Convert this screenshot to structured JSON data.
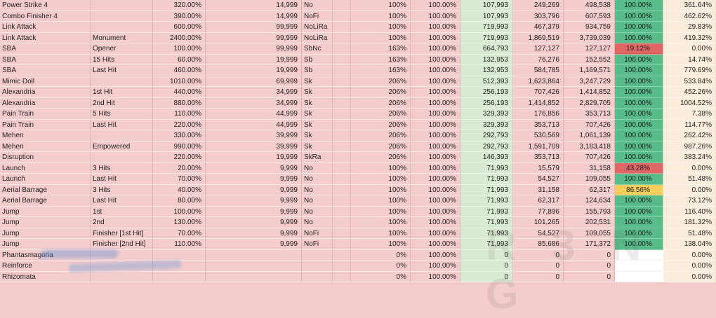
{
  "app": {
    "view": "spreadsheet-grid",
    "gridlines": "on",
    "header_row_visible": false
  },
  "colors": {
    "row_fill": "#f4cccc",
    "base_damage_column_fill": "#d9ead3",
    "cap_ratio_green": "#57bb8a",
    "cap_ratio_red": "#e06666",
    "cap_ratio_yellow": "#f5ce5e",
    "share_column_fill": "#fcecdb"
  },
  "watermark": {
    "text": "R 3 N G"
  },
  "rows": [
    {
      "skill": "Power Strike 4",
      "variant": "",
      "motion_pct": "320.00%",
      "cap": "14,999",
      "tags": "No",
      "mult": "100%",
      "pct": "100.00%",
      "base": "107,993",
      "dmg_a": "249,269",
      "dmg_b": "498,538",
      "cap_ratio": "100.00%",
      "cap_ratio_status": "green",
      "share": "361.64%"
    },
    {
      "skill": "Combo Finisher 4",
      "variant": "",
      "motion_pct": "390.00%",
      "cap": "14,999",
      "tags": "NoFi",
      "mult": "100%",
      "pct": "100.00%",
      "base": "107,993",
      "dmg_a": "303,796",
      "dmg_b": "607,593",
      "cap_ratio": "100.00%",
      "cap_ratio_status": "green",
      "share": "462.62%"
    },
    {
      "skill": "Link Attack",
      "variant": "",
      "motion_pct": "600.00%",
      "cap": "99,999",
      "tags": "NoLiRa",
      "mult": "100%",
      "pct": "100.00%",
      "base": "719,993",
      "dmg_a": "467,379",
      "dmg_b": "934,759",
      "cap_ratio": "100.00%",
      "cap_ratio_status": "green",
      "share": "29.83%"
    },
    {
      "skill": "Link Attack",
      "variant": "Monument",
      "motion_pct": "2400.00%",
      "cap": "99,999",
      "tags": "NoLiRa",
      "mult": "100%",
      "pct": "100.00%",
      "base": "719,993",
      "dmg_a": "1,869,519",
      "dmg_b": "3,739,039",
      "cap_ratio": "100.00%",
      "cap_ratio_status": "green",
      "share": "419.32%"
    },
    {
      "skill": "SBA",
      "variant": "Opener",
      "motion_pct": "100.00%",
      "cap": "99,999",
      "tags": "SbNc",
      "mult": "163%",
      "pct": "100.00%",
      "base": "664,793",
      "dmg_a": "127,127",
      "dmg_b": "127,127",
      "cap_ratio": "19.12%",
      "cap_ratio_status": "red",
      "share": "0.00%"
    },
    {
      "skill": "SBA",
      "variant": "15 Hits",
      "motion_pct": "60.00%",
      "cap": "19,999",
      "tags": "Sb",
      "mult": "163%",
      "pct": "100.00%",
      "base": "132,953",
      "dmg_a": "76,276",
      "dmg_b": "152,552",
      "cap_ratio": "100.00%",
      "cap_ratio_status": "green",
      "share": "14.74%"
    },
    {
      "skill": "SBA",
      "variant": "Last Hit",
      "motion_pct": "460.00%",
      "cap": "19,999",
      "tags": "Sb",
      "mult": "163%",
      "pct": "100.00%",
      "base": "132,953",
      "dmg_a": "584,785",
      "dmg_b": "1,169,571",
      "cap_ratio": "100.00%",
      "cap_ratio_status": "green",
      "share": "779.69%"
    },
    {
      "skill": "Mimic Doll",
      "variant": "",
      "motion_pct": "1010.00%",
      "cap": "69,999",
      "tags": "Sk",
      "mult": "206%",
      "pct": "100.00%",
      "base": "512,393",
      "dmg_a": "1,623,864",
      "dmg_b": "3,247,729",
      "cap_ratio": "100.00%",
      "cap_ratio_status": "green",
      "share": "533.84%"
    },
    {
      "skill": "Alexandria",
      "variant": "1st Hit",
      "motion_pct": "440.00%",
      "cap": "34,999",
      "tags": "Sk",
      "mult": "206%",
      "pct": "100.00%",
      "base": "256,193",
      "dmg_a": "707,426",
      "dmg_b": "1,414,852",
      "cap_ratio": "100.00%",
      "cap_ratio_status": "green",
      "share": "452.26%"
    },
    {
      "skill": "Alexandria",
      "variant": "2nd Hit",
      "motion_pct": "880.00%",
      "cap": "34,999",
      "tags": "Sk",
      "mult": "206%",
      "pct": "100.00%",
      "base": "256,193",
      "dmg_a": "1,414,852",
      "dmg_b": "2,829,705",
      "cap_ratio": "100.00%",
      "cap_ratio_status": "green",
      "share": "1004.52%"
    },
    {
      "skill": "Pain Train",
      "variant": "5 Hits",
      "motion_pct": "110.00%",
      "cap": "44,999",
      "tags": "Sk",
      "mult": "206%",
      "pct": "100.00%",
      "base": "329,393",
      "dmg_a": "176,856",
      "dmg_b": "353,713",
      "cap_ratio": "100.00%",
      "cap_ratio_status": "green",
      "share": "7.38%"
    },
    {
      "skill": "Pain Train",
      "variant": "Last Hit",
      "motion_pct": "220.00%",
      "cap": "44,999",
      "tags": "Sk",
      "mult": "206%",
      "pct": "100.00%",
      "base": "329,393",
      "dmg_a": "353,713",
      "dmg_b": "707,426",
      "cap_ratio": "100.00%",
      "cap_ratio_status": "green",
      "share": "114.77%"
    },
    {
      "skill": "Mehen",
      "variant": "",
      "motion_pct": "330.00%",
      "cap": "39,999",
      "tags": "Sk",
      "mult": "206%",
      "pct": "100.00%",
      "base": "292,793",
      "dmg_a": "530,569",
      "dmg_b": "1,061,139",
      "cap_ratio": "100.00%",
      "cap_ratio_status": "green",
      "share": "262.42%"
    },
    {
      "skill": "Mehen",
      "variant": "Empowered",
      "motion_pct": "990.00%",
      "cap": "39,999",
      "tags": "Sk",
      "mult": "206%",
      "pct": "100.00%",
      "base": "292,793",
      "dmg_a": "1,591,709",
      "dmg_b": "3,183,418",
      "cap_ratio": "100.00%",
      "cap_ratio_status": "green",
      "share": "987.26%"
    },
    {
      "skill": "Disruption",
      "variant": "",
      "motion_pct": "220.00%",
      "cap": "19,999",
      "tags": "SkRa",
      "mult": "206%",
      "pct": "100.00%",
      "base": "146,393",
      "dmg_a": "353,713",
      "dmg_b": "707,426",
      "cap_ratio": "100.00%",
      "cap_ratio_status": "green",
      "share": "383.24%"
    },
    {
      "skill": "Launch",
      "variant": "3 Hits",
      "motion_pct": "20.00%",
      "cap": "9,999",
      "tags": "No",
      "mult": "100%",
      "pct": "100.00%",
      "base": "71,993",
      "dmg_a": "15,579",
      "dmg_b": "31,158",
      "cap_ratio": "43.28%",
      "cap_ratio_status": "red",
      "share": "0.00%"
    },
    {
      "skill": "Launch",
      "variant": "Last Hit",
      "motion_pct": "70.00%",
      "cap": "9,999",
      "tags": "No",
      "mult": "100%",
      "pct": "100.00%",
      "base": "71,993",
      "dmg_a": "54,527",
      "dmg_b": "109,055",
      "cap_ratio": "100.00%",
      "cap_ratio_status": "green",
      "share": "51.48%"
    },
    {
      "skill": "Aerial Barrage",
      "variant": "3 Hits",
      "motion_pct": "40.00%",
      "cap": "9,999",
      "tags": "No",
      "mult": "100%",
      "pct": "100.00%",
      "base": "71,993",
      "dmg_a": "31,158",
      "dmg_b": "62,317",
      "cap_ratio": "86.56%",
      "cap_ratio_status": "yellow",
      "share": "0.00%"
    },
    {
      "skill": "Aerial Barrage",
      "variant": "Last Hit",
      "motion_pct": "80.00%",
      "cap": "9,999",
      "tags": "No",
      "mult": "100%",
      "pct": "100.00%",
      "base": "71,993",
      "dmg_a": "62,317",
      "dmg_b": "124,634",
      "cap_ratio": "100.00%",
      "cap_ratio_status": "green",
      "share": "73.12%"
    },
    {
      "skill": "Jump",
      "variant": "1st",
      "motion_pct": "100.00%",
      "cap": "9,999",
      "tags": "No",
      "mult": "100%",
      "pct": "100.00%",
      "base": "71,993",
      "dmg_a": "77,896",
      "dmg_b": "155,793",
      "cap_ratio": "100.00%",
      "cap_ratio_status": "green",
      "share": "116.40%"
    },
    {
      "skill": "Jump",
      "variant": "2nd",
      "motion_pct": "130.00%",
      "cap": "9,999",
      "tags": "No",
      "mult": "100%",
      "pct": "100.00%",
      "base": "71,993",
      "dmg_a": "101,265",
      "dmg_b": "202,531",
      "cap_ratio": "100.00%",
      "cap_ratio_status": "green",
      "share": "181.32%"
    },
    {
      "skill": "Jump",
      "variant": "Finisher [1st Hit]",
      "motion_pct": "70.00%",
      "cap": "9,999",
      "tags": "NoFi",
      "mult": "100%",
      "pct": "100.00%",
      "base": "71,993",
      "dmg_a": "54,527",
      "dmg_b": "109,055",
      "cap_ratio": "100.00%",
      "cap_ratio_status": "green",
      "share": "51.48%"
    },
    {
      "skill": "Jump",
      "variant": "Finisher [2nd Hit]",
      "motion_pct": "110.00%",
      "cap": "9,999",
      "tags": "NoFi",
      "mult": "100%",
      "pct": "100.00%",
      "base": "71,993",
      "dmg_a": "85,686",
      "dmg_b": "171,372",
      "cap_ratio": "100.00%",
      "cap_ratio_status": "green",
      "share": "138.04%"
    },
    {
      "skill": "Phantasmagoria",
      "variant": "",
      "motion_pct": "",
      "cap": "",
      "tags": "",
      "mult": "0%",
      "pct": "100.00%",
      "base": "0",
      "dmg_a": "0",
      "dmg_b": "0",
      "cap_ratio": "",
      "cap_ratio_status": "white",
      "share": "0.00%"
    },
    {
      "skill": "Reinforce",
      "variant": "",
      "motion_pct": "",
      "cap": "",
      "tags": "",
      "mult": "0%",
      "pct": "100.00%",
      "base": "0",
      "dmg_a": "0",
      "dmg_b": "0",
      "cap_ratio": "",
      "cap_ratio_status": "white",
      "share": "0.00%"
    },
    {
      "skill": "Rhizomata",
      "variant": "",
      "motion_pct": "",
      "cap": "",
      "tags": "",
      "mult": "0%",
      "pct": "100.00%",
      "base": "0",
      "dmg_a": "0",
      "dmg_b": "0",
      "cap_ratio": "",
      "cap_ratio_status": "white",
      "share": "0.00%"
    }
  ]
}
